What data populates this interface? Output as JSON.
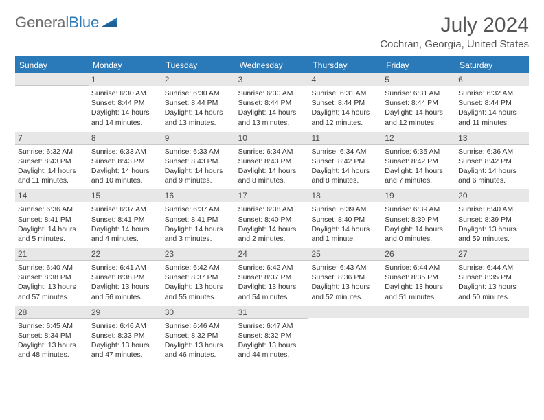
{
  "logo": {
    "text1": "General",
    "text2": "Blue"
  },
  "title": "July 2024",
  "location": "Cochran, Georgia, United States",
  "colors": {
    "header_bg": "#2a7ab9",
    "daynum_bg": "#e7e7e7",
    "text": "#333333",
    "title_text": "#555555",
    "logo_gray": "#6b6b6b"
  },
  "dayHeaders": [
    "Sunday",
    "Monday",
    "Tuesday",
    "Wednesday",
    "Thursday",
    "Friday",
    "Saturday"
  ],
  "weeks": [
    [
      {
        "n": "",
        "lines": []
      },
      {
        "n": "1",
        "lines": [
          "Sunrise: 6:30 AM",
          "Sunset: 8:44 PM",
          "Daylight: 14 hours and 14 minutes."
        ]
      },
      {
        "n": "2",
        "lines": [
          "Sunrise: 6:30 AM",
          "Sunset: 8:44 PM",
          "Daylight: 14 hours and 13 minutes."
        ]
      },
      {
        "n": "3",
        "lines": [
          "Sunrise: 6:30 AM",
          "Sunset: 8:44 PM",
          "Daylight: 14 hours and 13 minutes."
        ]
      },
      {
        "n": "4",
        "lines": [
          "Sunrise: 6:31 AM",
          "Sunset: 8:44 PM",
          "Daylight: 14 hours and 12 minutes."
        ]
      },
      {
        "n": "5",
        "lines": [
          "Sunrise: 6:31 AM",
          "Sunset: 8:44 PM",
          "Daylight: 14 hours and 12 minutes."
        ]
      },
      {
        "n": "6",
        "lines": [
          "Sunrise: 6:32 AM",
          "Sunset: 8:44 PM",
          "Daylight: 14 hours and 11 minutes."
        ]
      }
    ],
    [
      {
        "n": "7",
        "lines": [
          "Sunrise: 6:32 AM",
          "Sunset: 8:43 PM",
          "Daylight: 14 hours and 11 minutes."
        ]
      },
      {
        "n": "8",
        "lines": [
          "Sunrise: 6:33 AM",
          "Sunset: 8:43 PM",
          "Daylight: 14 hours and 10 minutes."
        ]
      },
      {
        "n": "9",
        "lines": [
          "Sunrise: 6:33 AM",
          "Sunset: 8:43 PM",
          "Daylight: 14 hours and 9 minutes."
        ]
      },
      {
        "n": "10",
        "lines": [
          "Sunrise: 6:34 AM",
          "Sunset: 8:43 PM",
          "Daylight: 14 hours and 8 minutes."
        ]
      },
      {
        "n": "11",
        "lines": [
          "Sunrise: 6:34 AM",
          "Sunset: 8:42 PM",
          "Daylight: 14 hours and 8 minutes."
        ]
      },
      {
        "n": "12",
        "lines": [
          "Sunrise: 6:35 AM",
          "Sunset: 8:42 PM",
          "Daylight: 14 hours and 7 minutes."
        ]
      },
      {
        "n": "13",
        "lines": [
          "Sunrise: 6:36 AM",
          "Sunset: 8:42 PM",
          "Daylight: 14 hours and 6 minutes."
        ]
      }
    ],
    [
      {
        "n": "14",
        "lines": [
          "Sunrise: 6:36 AM",
          "Sunset: 8:41 PM",
          "Daylight: 14 hours and 5 minutes."
        ]
      },
      {
        "n": "15",
        "lines": [
          "Sunrise: 6:37 AM",
          "Sunset: 8:41 PM",
          "Daylight: 14 hours and 4 minutes."
        ]
      },
      {
        "n": "16",
        "lines": [
          "Sunrise: 6:37 AM",
          "Sunset: 8:41 PM",
          "Daylight: 14 hours and 3 minutes."
        ]
      },
      {
        "n": "17",
        "lines": [
          "Sunrise: 6:38 AM",
          "Sunset: 8:40 PM",
          "Daylight: 14 hours and 2 minutes."
        ]
      },
      {
        "n": "18",
        "lines": [
          "Sunrise: 6:39 AM",
          "Sunset: 8:40 PM",
          "Daylight: 14 hours and 1 minute."
        ]
      },
      {
        "n": "19",
        "lines": [
          "Sunrise: 6:39 AM",
          "Sunset: 8:39 PM",
          "Daylight: 14 hours and 0 minutes."
        ]
      },
      {
        "n": "20",
        "lines": [
          "Sunrise: 6:40 AM",
          "Sunset: 8:39 PM",
          "Daylight: 13 hours and 59 minutes."
        ]
      }
    ],
    [
      {
        "n": "21",
        "lines": [
          "Sunrise: 6:40 AM",
          "Sunset: 8:38 PM",
          "Daylight: 13 hours and 57 minutes."
        ]
      },
      {
        "n": "22",
        "lines": [
          "Sunrise: 6:41 AM",
          "Sunset: 8:38 PM",
          "Daylight: 13 hours and 56 minutes."
        ]
      },
      {
        "n": "23",
        "lines": [
          "Sunrise: 6:42 AM",
          "Sunset: 8:37 PM",
          "Daylight: 13 hours and 55 minutes."
        ]
      },
      {
        "n": "24",
        "lines": [
          "Sunrise: 6:42 AM",
          "Sunset: 8:37 PM",
          "Daylight: 13 hours and 54 minutes."
        ]
      },
      {
        "n": "25",
        "lines": [
          "Sunrise: 6:43 AM",
          "Sunset: 8:36 PM",
          "Daylight: 13 hours and 52 minutes."
        ]
      },
      {
        "n": "26",
        "lines": [
          "Sunrise: 6:44 AM",
          "Sunset: 8:35 PM",
          "Daylight: 13 hours and 51 minutes."
        ]
      },
      {
        "n": "27",
        "lines": [
          "Sunrise: 6:44 AM",
          "Sunset: 8:35 PM",
          "Daylight: 13 hours and 50 minutes."
        ]
      }
    ],
    [
      {
        "n": "28",
        "lines": [
          "Sunrise: 6:45 AM",
          "Sunset: 8:34 PM",
          "Daylight: 13 hours and 48 minutes."
        ]
      },
      {
        "n": "29",
        "lines": [
          "Sunrise: 6:46 AM",
          "Sunset: 8:33 PM",
          "Daylight: 13 hours and 47 minutes."
        ]
      },
      {
        "n": "30",
        "lines": [
          "Sunrise: 6:46 AM",
          "Sunset: 8:32 PM",
          "Daylight: 13 hours and 46 minutes."
        ]
      },
      {
        "n": "31",
        "lines": [
          "Sunrise: 6:47 AM",
          "Sunset: 8:32 PM",
          "Daylight: 13 hours and 44 minutes."
        ]
      },
      {
        "n": "",
        "lines": []
      },
      {
        "n": "",
        "lines": []
      },
      {
        "n": "",
        "lines": []
      }
    ]
  ]
}
